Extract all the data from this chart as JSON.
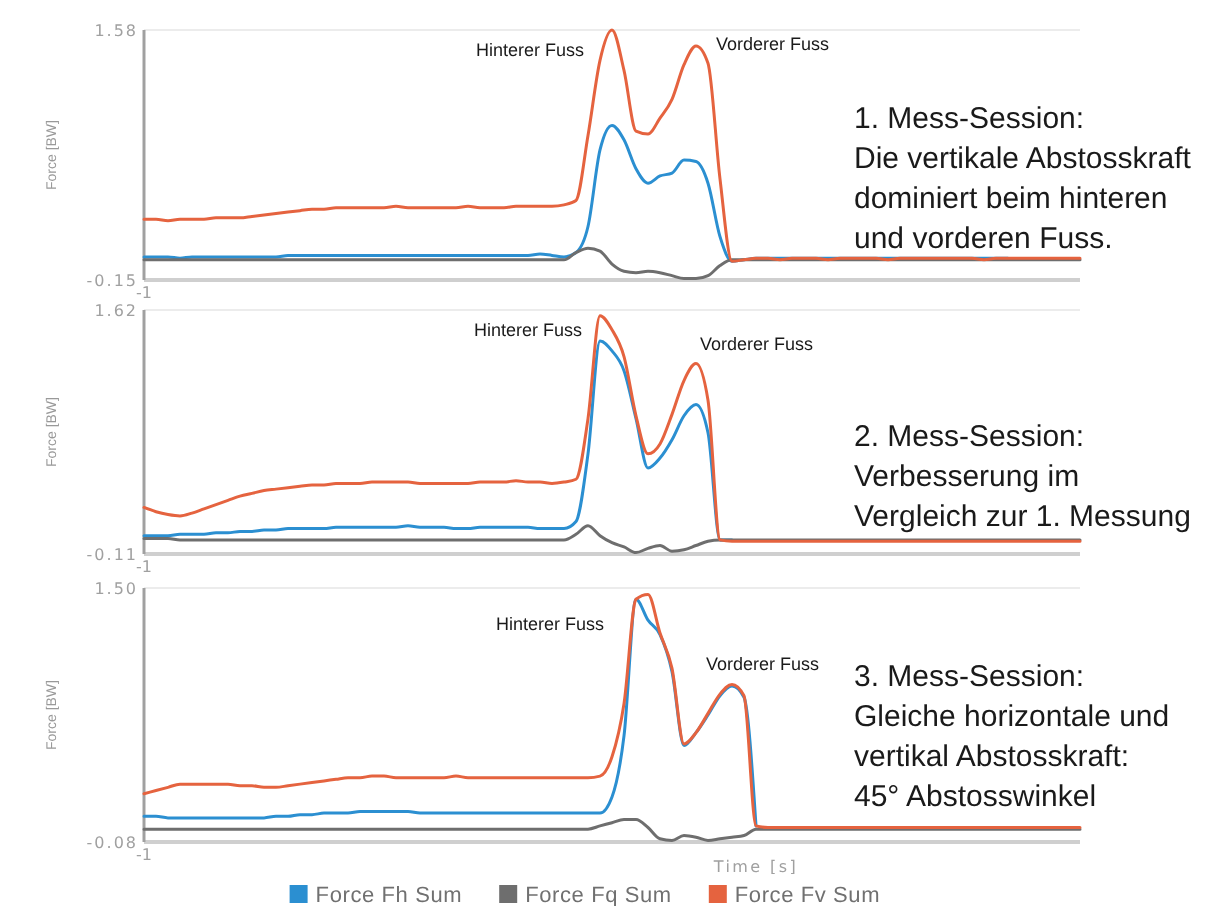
{
  "chart_data": [
    {
      "type": "line",
      "ylabel": "Force [BW]",
      "categories": [
        "-1",
        null,
        null,
        null,
        null,
        null,
        null,
        null,
        null,
        null,
        null,
        null,
        null,
        null,
        null,
        null,
        null,
        null,
        null,
        null,
        null,
        null,
        null,
        null,
        null,
        null,
        null,
        null,
        null,
        null,
        null,
        null,
        null,
        null,
        null,
        null,
        null,
        null,
        null,
        null,
        null,
        null,
        null,
        null,
        null,
        null,
        null,
        null,
        null,
        null,
        null,
        null,
        null,
        null,
        null,
        null,
        null,
        null,
        null,
        null,
        null,
        null,
        null,
        null,
        null,
        null,
        null,
        null,
        null,
        null,
        null,
        null,
        null,
        null,
        null,
        null,
        null,
        null,
        null
      ],
      "ylim": [
        -0.15,
        1.58
      ],
      "yticks": [
        -0.15,
        1.58
      ],
      "grid": "y",
      "annotations": [
        "Hinterer Fuss",
        "Vorderer Fuss",
        "1. Mess-Session:\nDie vertikale Abstosskraft\ndominiert beim hinteren\nund vorderen Fuss."
      ],
      "series": [
        {
          "color": "#2b8fd1",
          "values": [
            0.01,
            0.01,
            0.01,
            0,
            0.01,
            0.01,
            0.01,
            0.01,
            0.01,
            0.01,
            0.01,
            0.01,
            0.02,
            0.02,
            0.02,
            0.02,
            0.02,
            0.02,
            0.02,
            0.02,
            0.02,
            0.02,
            0.02,
            0.02,
            0.02,
            0.02,
            0.02,
            0.02,
            0.02,
            0.02,
            0.02,
            0.02,
            0.02,
            0.03,
            0.02,
            0.01,
            0.04,
            0.22,
            0.75,
            0.92,
            0.82,
            0.62,
            0.52,
            0.57,
            0.59,
            0.68,
            0.67,
            0.52,
            0.15,
            -0.02,
            -0.01,
            0,
            0,
            0,
            0,
            0,
            0,
            0,
            0,
            0,
            0,
            0,
            0,
            0,
            0,
            0,
            0,
            0,
            0,
            0,
            0,
            0,
            0,
            null,
            null,
            null,
            null,
            null,
            null
          ]
        },
        {
          "color": "#6e6e6e",
          "values": [
            -0.01,
            -0.01,
            -0.01,
            -0.01,
            -0.01,
            -0.01,
            -0.01,
            -0.01,
            -0.01,
            -0.01,
            -0.01,
            -0.01,
            -0.01,
            -0.01,
            -0.01,
            -0.01,
            -0.01,
            -0.01,
            -0.01,
            -0.01,
            -0.01,
            -0.01,
            -0.01,
            -0.01,
            -0.01,
            -0.01,
            -0.01,
            -0.01,
            -0.01,
            -0.01,
            -0.01,
            -0.01,
            -0.01,
            -0.01,
            -0.01,
            -0.01,
            0.04,
            0.07,
            0.05,
            -0.04,
            -0.09,
            -0.1,
            -0.09,
            -0.1,
            -0.12,
            -0.14,
            -0.14,
            -0.12,
            -0.05,
            -0.01,
            -0.01,
            -0.01,
            -0.01,
            -0.01,
            -0.01,
            -0.01,
            -0.01,
            -0.01,
            -0.01,
            -0.01,
            -0.01,
            -0.01,
            -0.01,
            -0.01,
            -0.01,
            -0.01,
            -0.01,
            -0.01,
            -0.01,
            -0.01,
            -0.01,
            -0.01,
            -0.01,
            -0.01,
            -0.01,
            -0.01,
            -0.01,
            -0.01,
            -0.01
          ]
        },
        {
          "color": "#e5633f",
          "values": [
            0.27,
            0.27,
            0.26,
            0.27,
            0.27,
            0.27,
            0.28,
            0.28,
            0.28,
            0.29,
            0.3,
            0.31,
            0.32,
            0.33,
            0.34,
            0.34,
            0.35,
            0.35,
            0.35,
            0.35,
            0.35,
            0.36,
            0.35,
            0.35,
            0.35,
            0.35,
            0.35,
            0.36,
            0.35,
            0.35,
            0.35,
            0.36,
            0.36,
            0.36,
            0.36,
            0.37,
            0.4,
            0.85,
            1.37,
            1.58,
            1.3,
            0.88,
            0.86,
            0.97,
            1.1,
            1.34,
            1.47,
            1.35,
            0.55,
            -0.02,
            -0.01,
            0,
            0,
            -0.01,
            0,
            0,
            0,
            -0.01,
            0,
            0,
            0,
            0,
            -0.01,
            0,
            0,
            0,
            0,
            0,
            0,
            0,
            -0.01,
            0,
            0,
            0,
            0,
            0,
            0,
            0,
            0
          ]
        }
      ]
    },
    {
      "type": "line",
      "ylabel": "Force [BW]",
      "categories": [
        "-1",
        null,
        null,
        null,
        null,
        null,
        null,
        null,
        null,
        null,
        null,
        null,
        null,
        null,
        null,
        null,
        null,
        null,
        null,
        null,
        null,
        null,
        null,
        null,
        null,
        null,
        null,
        null,
        null,
        null,
        null,
        null,
        null,
        null,
        null,
        null,
        null,
        null,
        null,
        null,
        null,
        null,
        null,
        null,
        null,
        null,
        null,
        null,
        null,
        null,
        null,
        null,
        null,
        null,
        null,
        null,
        null,
        null,
        null,
        null,
        null,
        null,
        null,
        null,
        null,
        null,
        null,
        null,
        null,
        null,
        null,
        null,
        null,
        null,
        null,
        null,
        null,
        null,
        null
      ],
      "ylim": [
        -0.11,
        1.62
      ],
      "yticks": [
        -0.11,
        1.62
      ],
      "grid": "y",
      "annotations": [
        "Hinterer Fuss",
        "Vorderer Fuss",
        "2. Mess-Session:\nVerbesserung im\nVergleich zur 1. Messung"
      ],
      "series": [
        {
          "color": "#2b8fd1",
          "values": [
            0.02,
            0.02,
            0.02,
            0.03,
            0.03,
            0.03,
            0.04,
            0.04,
            0.05,
            0.05,
            0.06,
            0.06,
            0.07,
            0.07,
            0.07,
            0.07,
            0.08,
            0.08,
            0.08,
            0.08,
            0.08,
            0.08,
            0.09,
            0.08,
            0.08,
            0.08,
            0.07,
            0.07,
            0.08,
            0.08,
            0.08,
            0.08,
            0.08,
            0.07,
            0.07,
            0.07,
            0.12,
            0.6,
            1.4,
            1.33,
            1.19,
            0.85,
            0.5,
            0.57,
            0.7,
            0.87,
            0.95,
            0.75,
            -0.01,
            -0.01,
            null,
            null,
            null,
            null,
            null,
            null,
            null,
            null,
            null,
            null,
            null,
            null,
            null,
            null,
            null,
            null,
            null,
            null,
            null,
            null,
            null,
            null,
            null,
            null,
            null,
            null,
            null,
            null,
            null
          ]
        },
        {
          "color": "#6e6e6e",
          "values": [
            0,
            0,
            0,
            -0.01,
            -0.01,
            -0.01,
            -0.01,
            -0.01,
            -0.01,
            -0.01,
            -0.01,
            -0.01,
            -0.01,
            -0.01,
            -0.01,
            -0.01,
            -0.01,
            -0.01,
            -0.01,
            -0.01,
            -0.01,
            -0.01,
            -0.01,
            -0.01,
            -0.01,
            -0.01,
            -0.01,
            -0.01,
            -0.01,
            -0.01,
            -0.01,
            -0.01,
            -0.01,
            -0.01,
            -0.01,
            -0.01,
            0.03,
            0.09,
            0.02,
            -0.03,
            -0.06,
            -0.1,
            -0.07,
            -0.05,
            -0.09,
            -0.08,
            -0.05,
            -0.02,
            -0.01,
            -0.01,
            -0.01,
            -0.01,
            -0.01,
            -0.01,
            -0.01,
            -0.01,
            -0.01,
            -0.01,
            -0.01,
            -0.01,
            -0.01,
            -0.01,
            -0.01,
            -0.01,
            -0.01,
            -0.01,
            -0.01,
            -0.01,
            -0.01,
            -0.01,
            -0.01,
            -0.01,
            -0.01,
            -0.01,
            -0.01,
            -0.01,
            -0.01,
            -0.01,
            -0.01
          ]
        },
        {
          "color": "#e5633f",
          "values": [
            0.22,
            0.19,
            0.17,
            0.16,
            0.18,
            0.21,
            0.24,
            0.27,
            0.3,
            0.32,
            0.34,
            0.35,
            0.36,
            0.37,
            0.38,
            0.38,
            0.39,
            0.39,
            0.39,
            0.4,
            0.4,
            0.4,
            0.4,
            0.39,
            0.39,
            0.39,
            0.39,
            0.39,
            0.4,
            0.4,
            0.4,
            0.41,
            0.4,
            0.4,
            0.39,
            0.4,
            0.42,
            0.85,
            1.58,
            1.48,
            1.29,
            0.87,
            0.6,
            0.67,
            0.88,
            1.12,
            1.24,
            0.98,
            -0.01,
            -0.02,
            -0.02,
            -0.02,
            -0.02,
            -0.02,
            -0.02,
            -0.02,
            -0.02,
            -0.02,
            -0.02,
            -0.02,
            -0.02,
            -0.02,
            -0.02,
            -0.02,
            -0.02,
            -0.02,
            -0.02,
            -0.02,
            -0.02,
            -0.02,
            -0.02,
            -0.02,
            -0.02,
            -0.02,
            -0.02,
            -0.02,
            -0.02,
            -0.02,
            -0.02
          ]
        }
      ]
    },
    {
      "type": "line",
      "ylabel": "Force [BW]",
      "xlabel": "Time [s]",
      "legend": "bottom",
      "categories": [
        "-1",
        null,
        null,
        null,
        null,
        null,
        null,
        null,
        null,
        null,
        null,
        null,
        null,
        null,
        null,
        null,
        null,
        null,
        null,
        null,
        null,
        null,
        null,
        null,
        null,
        null,
        null,
        null,
        null,
        null,
        null,
        null,
        null,
        null,
        null,
        null,
        null,
        null,
        null,
        null,
        null,
        null,
        null,
        null,
        null,
        null,
        null,
        null,
        null,
        null,
        null,
        null,
        null,
        null,
        null,
        null,
        null,
        null,
        null,
        null,
        null,
        null,
        null,
        null,
        null,
        null,
        null,
        null,
        null,
        null,
        null,
        null,
        null,
        null,
        null,
        null,
        null,
        null,
        null
      ],
      "ylim": [
        -0.08,
        1.5
      ],
      "yticks": [
        -0.08,
        {
          "value": 1.5,
          "label": "1.50"
        }
      ],
      "grid": "y",
      "annotations": [
        "Hinterer Fuss",
        "Vorderer Fuss",
        "3. Mess-Session:\nGleiche horizontale und\nvertikal Abstosskraft:\n45° Abstosswinkel"
      ],
      "series": [
        {
          "name": "Force Fh Sum",
          "color": "#2b8fd1",
          "values": [
            0.08,
            0.08,
            0.07,
            0.07,
            0.07,
            0.07,
            0.07,
            0.07,
            0.07,
            0.07,
            0.07,
            0.08,
            0.08,
            0.09,
            0.09,
            0.1,
            0.1,
            0.1,
            0.11,
            0.11,
            0.11,
            0.11,
            0.11,
            0.1,
            0.1,
            0.1,
            0.1,
            0.1,
            0.1,
            0.1,
            0.1,
            0.1,
            0.1,
            0.1,
            0.1,
            0.1,
            0.1,
            0.1,
            0.1,
            0.2,
            0.58,
            1.43,
            1.3,
            1.21,
            0.98,
            0.52,
            0.6,
            0.71,
            0.83,
            0.89,
            0.82,
            0.02,
            null,
            null,
            null,
            null,
            null,
            null,
            null,
            null,
            null,
            null,
            null,
            null,
            null,
            null,
            null,
            null,
            null,
            null,
            null,
            null,
            null,
            null,
            null,
            null,
            null,
            null,
            null
          ]
        },
        {
          "name": "Force Fq Sum",
          "color": "#6e6e6e",
          "values": [
            0,
            0,
            0,
            0,
            0,
            0,
            0,
            0,
            0,
            0,
            0,
            0,
            0,
            0,
            0,
            0,
            0,
            0,
            0,
            0,
            0,
            0,
            0,
            0,
            0,
            0,
            0,
            0,
            0,
            0,
            0,
            0,
            0,
            0,
            0,
            0,
            0,
            0,
            0.02,
            0.04,
            0.06,
            0.06,
            0.01,
            -0.06,
            -0.07,
            -0.04,
            -0.05,
            -0.07,
            -0.06,
            -0.05,
            -0.04,
            0,
            0,
            0,
            0,
            0,
            0,
            0,
            0,
            0,
            0,
            0,
            0,
            0,
            0,
            0,
            0,
            0,
            0,
            0,
            0,
            0,
            0,
            0,
            0,
            0,
            0,
            0,
            0
          ]
        },
        {
          "name": "Force Fv Sum",
          "color": "#e5633f",
          "values": [
            0.22,
            0.24,
            0.26,
            0.28,
            0.28,
            0.28,
            0.28,
            0.28,
            0.27,
            0.27,
            0.26,
            0.26,
            0.27,
            0.28,
            0.29,
            0.3,
            0.31,
            0.32,
            0.32,
            0.33,
            0.33,
            0.32,
            0.32,
            0.32,
            0.32,
            0.32,
            0.33,
            0.32,
            0.32,
            0.32,
            0.32,
            0.32,
            0.32,
            0.32,
            0.32,
            0.32,
            0.32,
            0.32,
            0.33,
            0.45,
            0.78,
            1.43,
            1.46,
            1.22,
            1,
            0.53,
            0.6,
            0.72,
            0.84,
            0.9,
            0.83,
            0.02,
            0.01,
            0.01,
            0.01,
            0.01,
            0.01,
            0.01,
            0.01,
            0.01,
            0.01,
            0.01,
            0.01,
            0.01,
            0.01,
            0.01,
            0.01,
            0.01,
            0.01,
            0.01,
            0.01,
            0.01,
            0.01,
            0.01,
            0.01,
            0.01,
            0.01,
            0.01,
            0.01
          ]
        }
      ]
    }
  ]
}
